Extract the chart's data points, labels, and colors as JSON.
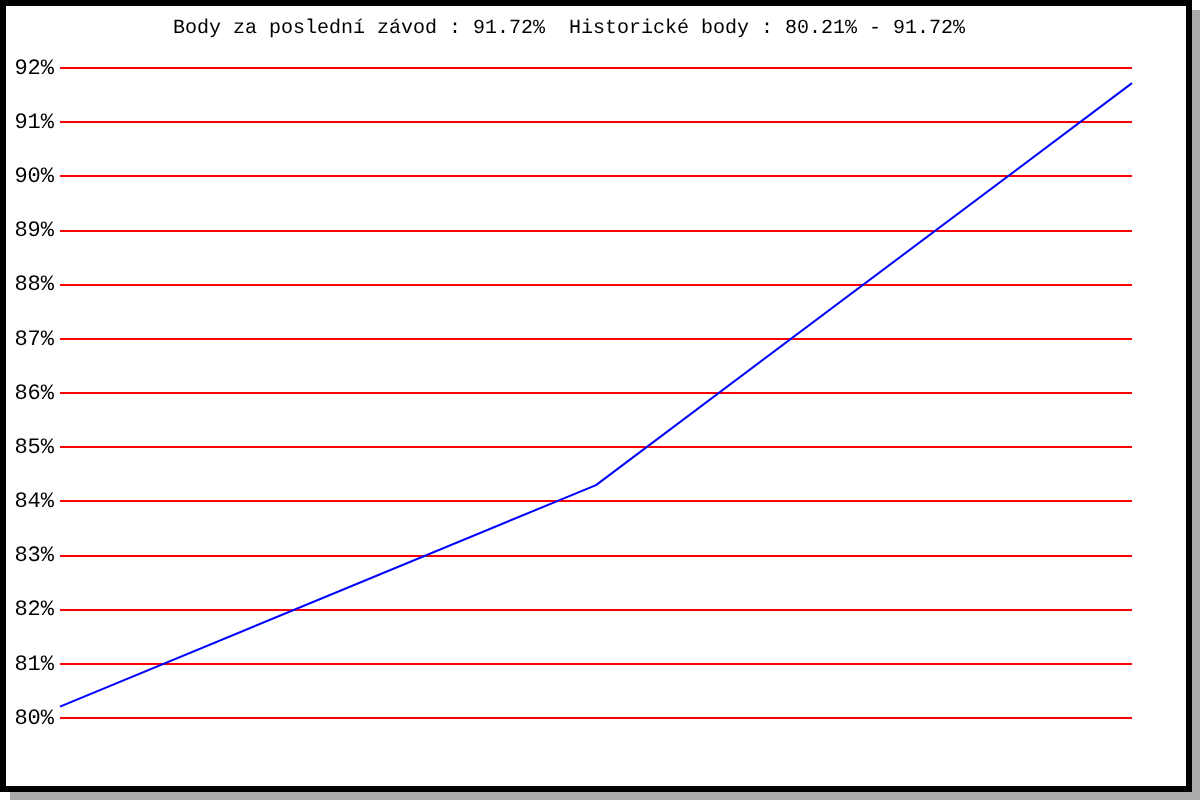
{
  "chart_data": {
    "type": "line",
    "title": "Body za poslední závod : 91.72%  Historické body : 80.21% - 91.72%",
    "categories": [
      null,
      null,
      null
    ],
    "series": [
      {
        "color": "#0000ff",
        "values": [
          80.21,
          84.3,
          91.72
        ]
      }
    ],
    "ylim": [
      80,
      92
    ],
    "yticks": [
      {
        "value": 80,
        "label": "80%"
      },
      {
        "value": 81,
        "label": "81%"
      },
      {
        "value": 82,
        "label": "82%"
      },
      {
        "value": 83,
        "label": "83%"
      },
      {
        "value": 84,
        "label": "84%"
      },
      {
        "value": 85,
        "label": "85%"
      },
      {
        "value": 86,
        "label": "86%"
      },
      {
        "value": 87,
        "label": "87%"
      },
      {
        "value": 88,
        "label": "88%"
      },
      {
        "value": 89,
        "label": "89%"
      },
      {
        "value": 90,
        "label": "90%"
      },
      {
        "value": 91,
        "label": "91%"
      },
      {
        "value": 92,
        "label": "92%"
      }
    ],
    "grid": "y",
    "legend": false,
    "marker": "none"
  }
}
